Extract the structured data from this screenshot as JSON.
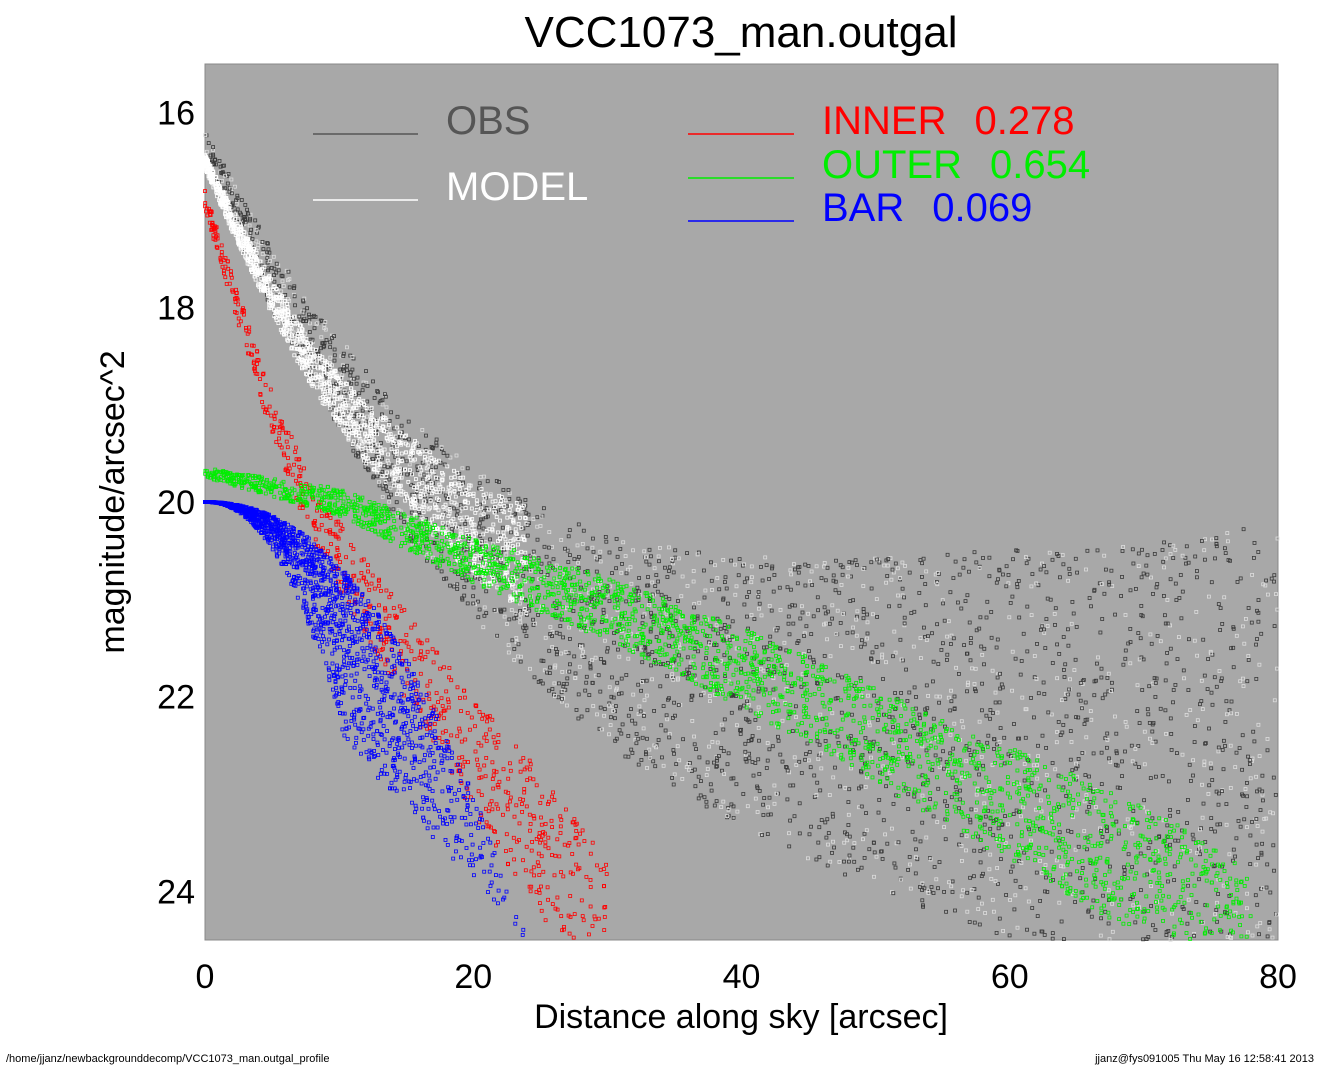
{
  "chart_data": {
    "type": "scatter",
    "title": "VCC1073_man.outgal",
    "xlabel": "Distance along sky [arcsec]",
    "ylabel": "magnitude/arcsec^2",
    "xlim": [
      0,
      80
    ],
    "ylim": [
      24.5,
      15.5
    ],
    "y_inverted": true,
    "background_color": "#a8a8a8",
    "x_ticks": [
      0,
      20,
      40,
      60,
      80
    ],
    "y_ticks": [
      16,
      18,
      20,
      22,
      24
    ],
    "legend": [
      {
        "name": "OBS",
        "value": "",
        "color": "#555555"
      },
      {
        "name": "MODEL",
        "value": "",
        "color": "#ffffff"
      },
      {
        "name": "INNER",
        "value": "0.278",
        "color": "#ff0000"
      },
      {
        "name": "OUTER",
        "value": "0.654",
        "color": "#00ee00"
      },
      {
        "name": "BAR",
        "value": "0.069",
        "color": "#0000ff"
      }
    ],
    "series": [
      {
        "name": "OBS",
        "color": "#444444",
        "approx_profile": {
          "x": [
            0,
            5,
            10,
            15,
            20,
            25,
            30,
            40,
            50,
            60,
            70,
            80
          ],
          "y": [
            16.3,
            17.6,
            18.6,
            19.5,
            20.1,
            20.6,
            21.0,
            21.4,
            21.6,
            21.7,
            21.8,
            21.8
          ]
        }
      },
      {
        "name": "MODEL",
        "color": "#ffffff",
        "approx_profile": {
          "x": [
            0,
            2,
            5,
            8,
            12,
            16,
            20,
            24
          ],
          "y": [
            16.5,
            17.1,
            17.9,
            18.6,
            19.3,
            19.8,
            20.3,
            20.6
          ]
        }
      },
      {
        "name": "INNER",
        "color": "#ff0000",
        "approx_profile": {
          "x": [
            0,
            2,
            5,
            8,
            12,
            16,
            20,
            25,
            30
          ],
          "y": [
            16.9,
            17.8,
            19.1,
            20.1,
            21.0,
            21.8,
            22.6,
            23.5,
            24.5
          ]
        }
      },
      {
        "name": "OUTER",
        "color": "#00ee00",
        "approx_profile": {
          "x": [
            0,
            10,
            20,
            30,
            40,
            50,
            60,
            70,
            78
          ],
          "y": [
            19.7,
            20.0,
            20.6,
            21.1,
            21.7,
            22.4,
            23.1,
            23.8,
            24.5
          ]
        }
      },
      {
        "name": "BAR",
        "color": "#0000ff",
        "approx_profile": {
          "x": [
            0,
            4,
            8,
            12,
            16,
            20,
            24
          ],
          "y": [
            20.0,
            20.1,
            20.6,
            21.2,
            22.1,
            23.3,
            24.5
          ]
        }
      }
    ]
  },
  "footer": {
    "left": "/home/jjanz/newbackgrounddecomp/VCC1073_man.outgal_profile",
    "right": "jjanz@fys091005  Thu May 16 12:58:41 2013"
  }
}
